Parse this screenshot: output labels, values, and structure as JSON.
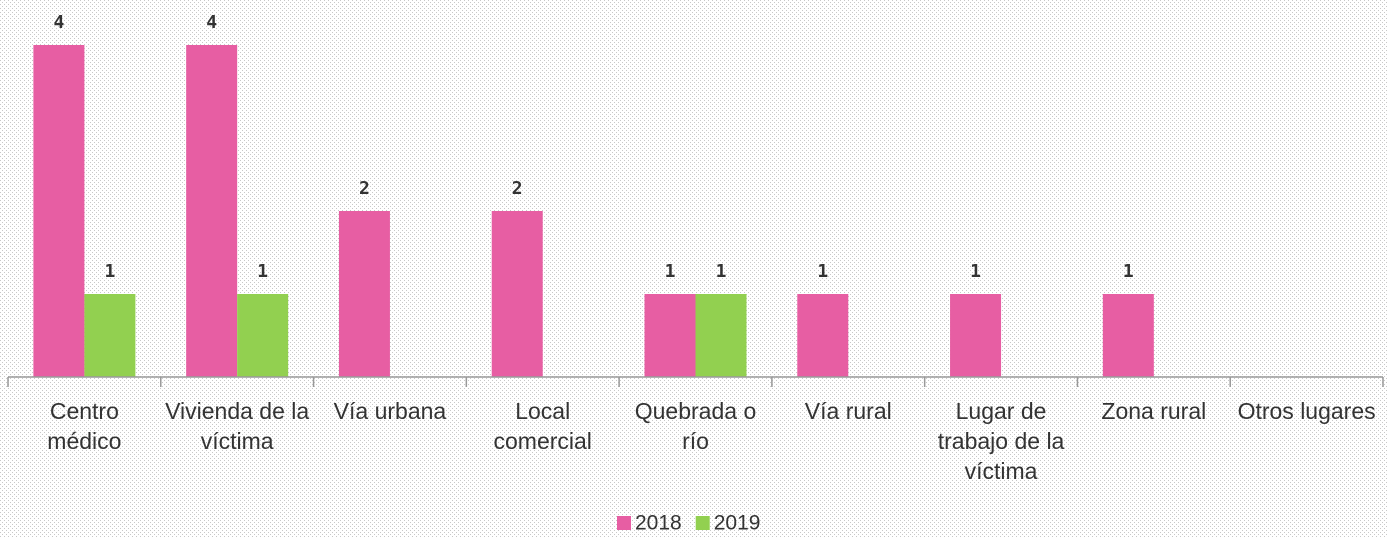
{
  "chart_data": {
    "type": "bar",
    "categories": [
      "Centro médico",
      "Vivienda de la víctima",
      "Vía urbana",
      "Local comercial",
      "Quebrada o río",
      "Vía rural",
      "Lugar de trabajo de la víctima",
      "Zona rural",
      "Otros lugares"
    ],
    "series": [
      {
        "name": "2018",
        "color": "#e75ea3",
        "values": [
          4,
          4,
          2,
          2,
          1,
          1,
          1,
          1,
          null
        ]
      },
      {
        "name": "2019",
        "color": "#92d050",
        "values": [
          1,
          1,
          null,
          null,
          1,
          null,
          null,
          null,
          null
        ]
      }
    ],
    "ylim": [
      0,
      4
    ],
    "legend": "bottom"
  }
}
